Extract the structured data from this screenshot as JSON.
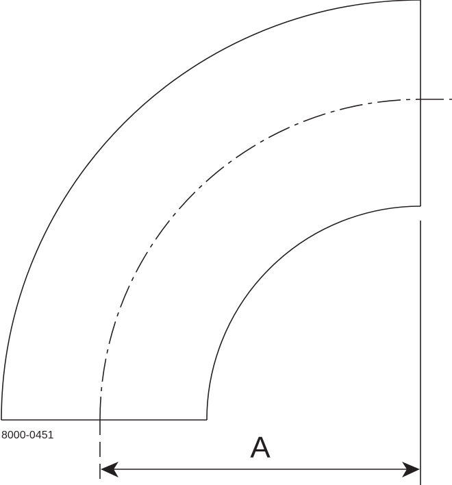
{
  "drawing": {
    "part_number": "8000-0451",
    "dimension_label": "A",
    "line_color": "#231f20"
  }
}
